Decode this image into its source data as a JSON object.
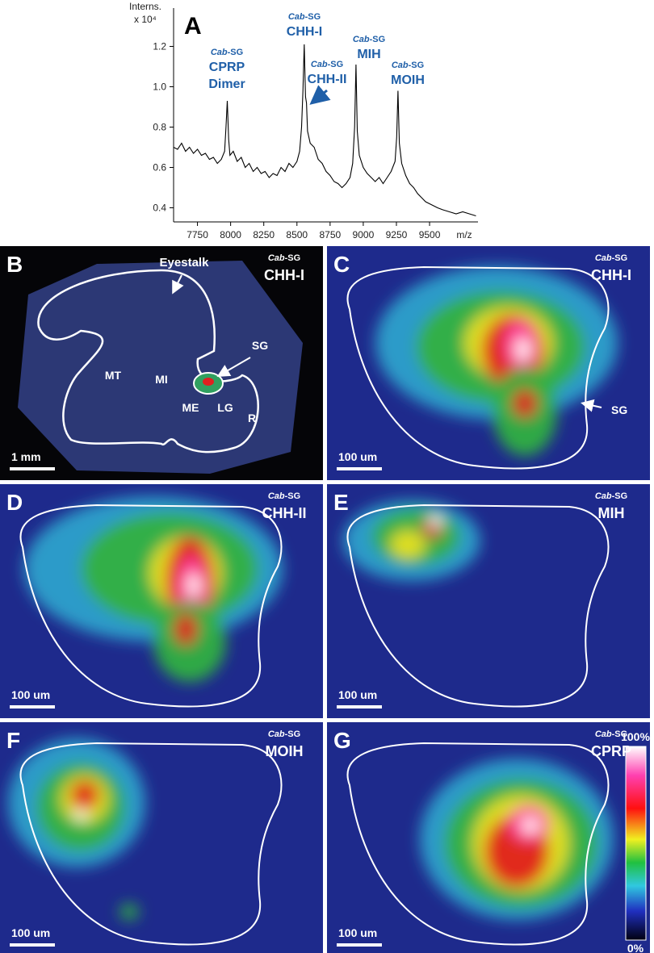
{
  "chart_data": {
    "type": "line",
    "panel_label": "A",
    "ylabel": "Interns.",
    "yscale_label": "x 10⁴",
    "xlabel": "m/z",
    "color": "#000000",
    "x": [
      7570,
      7600,
      7630,
      7660,
      7690,
      7720,
      7750,
      7780,
      7810,
      7840,
      7870,
      7900,
      7930,
      7955,
      7965,
      7975,
      7985,
      7995,
      8020,
      8050,
      8080,
      8110,
      8140,
      8170,
      8200,
      8230,
      8260,
      8290,
      8320,
      8350,
      8380,
      8410,
      8440,
      8470,
      8500,
      8520,
      8535,
      8545,
      8555,
      8565,
      8572,
      8580,
      8600,
      8630,
      8660,
      8690,
      8720,
      8750,
      8780,
      8810,
      8840,
      8870,
      8900,
      8920,
      8935,
      8945,
      8955,
      8970,
      9000,
      9030,
      9060,
      9090,
      9120,
      9150,
      9180,
      9210,
      9240,
      9252,
      9262,
      9272,
      9290,
      9320,
      9350,
      9380,
      9410,
      9440,
      9470,
      9500,
      9530,
      9560,
      9600,
      9650,
      9700,
      9750,
      9800,
      9850
    ],
    "values": [
      0.7,
      0.69,
      0.72,
      0.68,
      0.7,
      0.67,
      0.69,
      0.66,
      0.67,
      0.64,
      0.65,
      0.62,
      0.64,
      0.68,
      0.8,
      0.93,
      0.74,
      0.66,
      0.68,
      0.63,
      0.65,
      0.6,
      0.62,
      0.58,
      0.6,
      0.57,
      0.58,
      0.55,
      0.57,
      0.56,
      0.6,
      0.58,
      0.62,
      0.6,
      0.63,
      0.68,
      0.8,
      0.98,
      1.21,
      0.95,
      0.92,
      0.78,
      0.72,
      0.7,
      0.64,
      0.62,
      0.58,
      0.56,
      0.53,
      0.52,
      0.5,
      0.52,
      0.55,
      0.62,
      0.8,
      1.11,
      0.78,
      0.66,
      0.6,
      0.57,
      0.55,
      0.53,
      0.55,
      0.52,
      0.55,
      0.58,
      0.63,
      0.75,
      0.98,
      0.72,
      0.62,
      0.56,
      0.52,
      0.5,
      0.47,
      0.45,
      0.43,
      0.42,
      0.41,
      0.4,
      0.39,
      0.38,
      0.37,
      0.38,
      0.37,
      0.36
    ],
    "xlim": [
      7570,
      9865
    ],
    "ylim": [
      0.33,
      1.35
    ],
    "xticks": [
      7750,
      8000,
      8250,
      8500,
      8750,
      9000,
      9250,
      9500
    ],
    "yticks": [
      0.4,
      0.6,
      0.8,
      {
        "value": 1,
        "label": "1.0"
      },
      1.2
    ],
    "annotations": [
      {
        "species": "Cab",
        "suffix": "-SG",
        "lines": [
          "CPRP",
          "Dimer"
        ]
      },
      {
        "species": "Cab",
        "suffix": "-SG",
        "lines": [
          "CHH-I"
        ]
      },
      {
        "species": "Cab",
        "suffix": "-SG",
        "lines": [
          "CHH-II"
        ]
      },
      {
        "species": "Cab",
        "suffix": "-SG",
        "lines": [
          "MIH"
        ]
      },
      {
        "species": "Cab",
        "suffix": "-SG",
        "lines": [
          "MOIH"
        ]
      }
    ]
  },
  "panels": [
    {
      "label": "B",
      "species": "Cab",
      "suffix": "-SG",
      "peptide": "CHH-I",
      "scale_bar": "1 mm",
      "annotations": [
        "Eyestalk",
        "SG",
        "MT",
        "MI",
        "ME",
        "LG",
        "R"
      ]
    },
    {
      "label": "C",
      "species": "Cab",
      "suffix": "-SG",
      "peptide": "CHH-I",
      "scale_bar": "100 um",
      "annotations": [
        "SG"
      ]
    },
    {
      "label": "D",
      "species": "Cab",
      "suffix": "-SG",
      "peptide": "CHH-II",
      "scale_bar": "100 um"
    },
    {
      "label": "E",
      "species": "Cab",
      "suffix": "-SG",
      "peptide": "MIH",
      "scale_bar": "100 um"
    },
    {
      "label": "F",
      "species": "Cab",
      "suffix": "-SG",
      "peptide": "MOIH",
      "scale_bar": "100 um"
    },
    {
      "label": "G",
      "species": "Cab",
      "suffix": "-SG",
      "peptide": "CPRP",
      "scale_bar": "100 um",
      "colorbar": {
        "max": "100%",
        "min": "0%"
      }
    }
  ]
}
